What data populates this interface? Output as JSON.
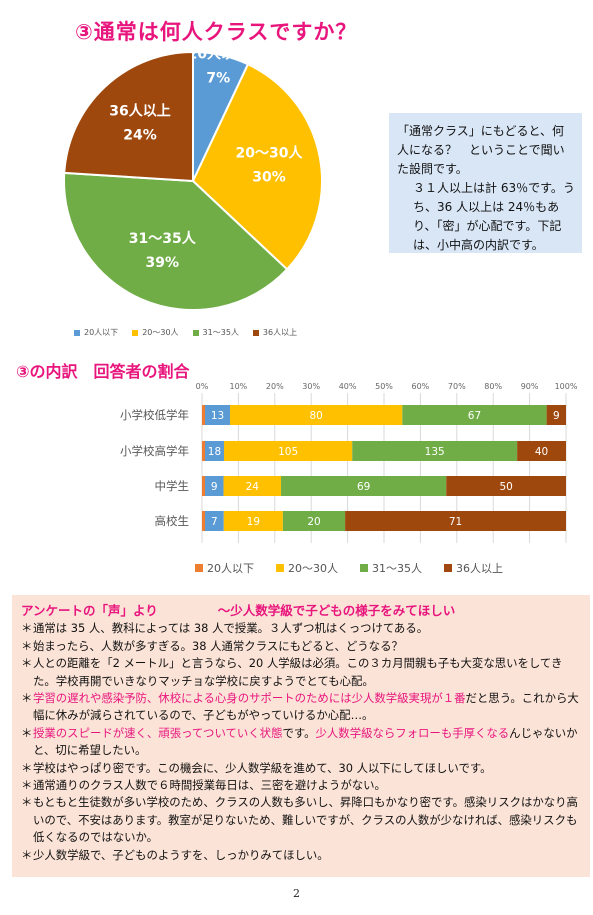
{
  "title1": "③通常は何人クラスですか？",
  "pie_chart": {
    "type": "pie",
    "slices": [
      {
        "label": "20人以下",
        "value": 7,
        "percent_text": "7%",
        "color": "#5b9bd5"
      },
      {
        "label": "20～30人",
        "value": 30,
        "percent_text": "30%",
        "color": "#ffc000"
      },
      {
        "label": "31～35人",
        "value": 39,
        "percent_text": "39%",
        "color": "#70ad47"
      },
      {
        "label": "36人以上",
        "value": 24,
        "percent_text": "24%",
        "color": "#9e480e"
      }
    ]
  },
  "note": {
    "line1": "「通常クラス」にもどると、何人になる？　ということで聞いた設問です。",
    "line2": "３１人以上は計 63％です。うち、36 人以上は 24％もあり、「密」が心配です。下記は、小中高の内訳です。"
  },
  "title2": "③の内訳　回答者の割合",
  "chart_data": {
    "type": "bar",
    "orientation": "horizontal",
    "stacked": "percent",
    "categories": [
      "小学校低学年",
      "小学校高学年",
      "中学生",
      "高校生"
    ],
    "series": [
      {
        "name": "20人以下",
        "values": [
          13,
          18,
          9,
          7
        ],
        "color": "#5b9bd5",
        "segment_color": "#5b9bd5",
        "stub_color": "#ed7d31"
      },
      {
        "name": "20～30人",
        "values": [
          80,
          105,
          24,
          19
        ],
        "color": "#ffc000"
      },
      {
        "name": "31～35人",
        "values": [
          67,
          135,
          69,
          20
        ],
        "color": "#70ad47"
      },
      {
        "name": "36人以上",
        "values": [
          9,
          40,
          50,
          71
        ],
        "color": "#9e480e"
      }
    ],
    "legend_colors": [
      "#ed7d31",
      "#ffc000",
      "#70ad47",
      "#9e480e"
    ],
    "xticks": [
      "0%",
      "10%",
      "20%",
      "30%",
      "40%",
      "50%",
      "60%",
      "70%",
      "80%",
      "90%",
      "100%"
    ],
    "xlim": [
      0,
      100
    ],
    "grid": true,
    "legend": "bottom"
  },
  "voice": {
    "head_left": "アンケートの「声」より",
    "head_right": "～少人数学級で子どもの様子をみてほしい",
    "bullet": "＊",
    "items": [
      {
        "parts": [
          {
            "t": "通常は 35 人、教科によっては 38 人で授業。３人ずつ机はくっつけてある。"
          }
        ]
      },
      {
        "parts": [
          {
            "t": "始まったら、人数が多すぎる。38 人通常クラスにもどると、どうなる？"
          }
        ]
      },
      {
        "parts": [
          {
            "t": "人との距離を「2 メートル」と言うなら、20 人学級は必須。この３カ月間親も子も大変な思いをしてきた。学校再開でいきなりマッチョな学校に戻すようでとても心配。"
          }
        ]
      },
      {
        "parts": [
          {
            "t": "学習の遅れや感染予防、休校による心身のサポートのためには少人数学級実現が１番",
            "pink": true
          },
          {
            "t": "だと思う。これから大幅に休みが減らされているので、子どもがやっていけるか心配…。"
          }
        ]
      },
      {
        "parts": [
          {
            "t": "授業のスピードが速く、頑張ってついていく状態",
            "pink": true
          },
          {
            "t": "です。"
          },
          {
            "t": "少人数学級ならフォローも手厚くなる",
            "pink": true
          },
          {
            "t": "んじゃないかと、切に希望したい。"
          }
        ]
      },
      {
        "parts": [
          {
            "t": "学校はやっぱり密です。この機会に、少人数学級を進めて、30 人以下にしてほしいです。"
          }
        ]
      },
      {
        "parts": [
          {
            "t": "通常通りのクラス人数で６時間授業毎日は、三密を避けようがない。"
          }
        ]
      },
      {
        "parts": [
          {
            "t": "もともと生徒数が多い学校のため、クラスの人数も多いし、昇降口もかなり密です。感染リスクはかなり高いので、不安はあります。教室が足りないため、難しいですが、クラスの人数が少なければ、感染リスクも低くなるのではないか。"
          }
        ]
      },
      {
        "parts": [
          {
            "t": "少人数学級で、子どものようすを、しっかりみてほしい。"
          }
        ]
      }
    ]
  },
  "page_number": "2"
}
